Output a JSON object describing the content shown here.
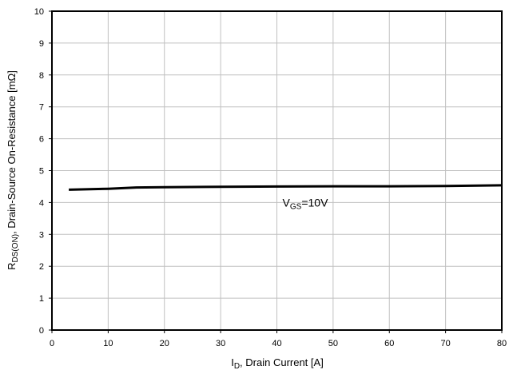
{
  "chart_data": {
    "type": "line",
    "xlabel": {
      "main": "I",
      "sub": "D",
      "rest": ", Drain Current [A]"
    },
    "ylabel": {
      "main": "R",
      "sub": "DS(ON)",
      "rest": ", Drain-Source On-Resistance [mΩ]"
    },
    "xlim": [
      0,
      80
    ],
    "ylim": [
      0,
      10
    ],
    "xticks": [
      "0",
      "10",
      "20",
      "30",
      "40",
      "50",
      "60",
      "70",
      "80"
    ],
    "yticks": [
      "0",
      "1",
      "2",
      "3",
      "4",
      "5",
      "6",
      "7",
      "8",
      "9",
      "10"
    ],
    "grid": true,
    "annotation": {
      "main": "V",
      "sub": "GS",
      "rest": "=10V",
      "x": 41,
      "y": 4.0
    },
    "series": [
      {
        "x": [
          3,
          10,
          15,
          20,
          30,
          40,
          50,
          60,
          70,
          80
        ],
        "values": [
          4.4,
          4.43,
          4.47,
          4.48,
          4.49,
          4.5,
          4.51,
          4.51,
          4.52,
          4.54
        ]
      }
    ],
    "colors": {
      "line": "#000000",
      "grid": "#c0c0c0",
      "axis": "#000000"
    }
  }
}
